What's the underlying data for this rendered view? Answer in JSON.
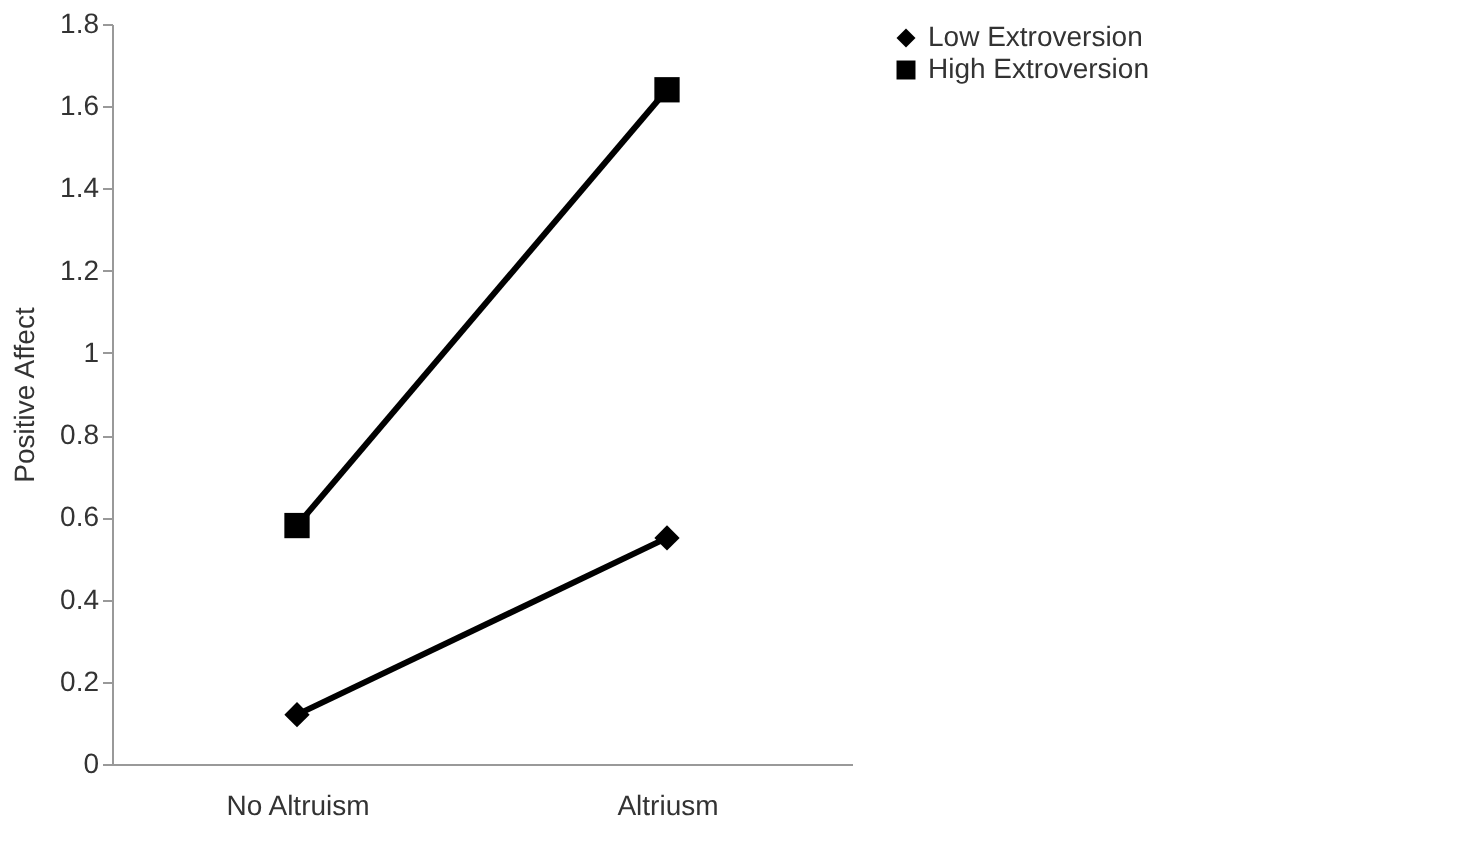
{
  "chart_data": {
    "type": "line",
    "ylabel": "Positive Affect",
    "categories": [
      "No Altruism",
      "Altriusm"
    ],
    "series": [
      {
        "name": "Low Extroversion",
        "color": "#000000",
        "marker": "diamond",
        "values": [
          0.12,
          0.55
        ]
      },
      {
        "name": "High Extroversion",
        "color": "#000000",
        "marker": "square",
        "values": [
          0.58,
          1.64
        ]
      }
    ],
    "ylim": [
      0,
      1.8
    ],
    "yticks": [
      0,
      0.2,
      0.4,
      0.6,
      0.8,
      1,
      1.2,
      1.4,
      1.6,
      1.8
    ],
    "grid": false,
    "legend": "right",
    "line_style": "solid"
  }
}
